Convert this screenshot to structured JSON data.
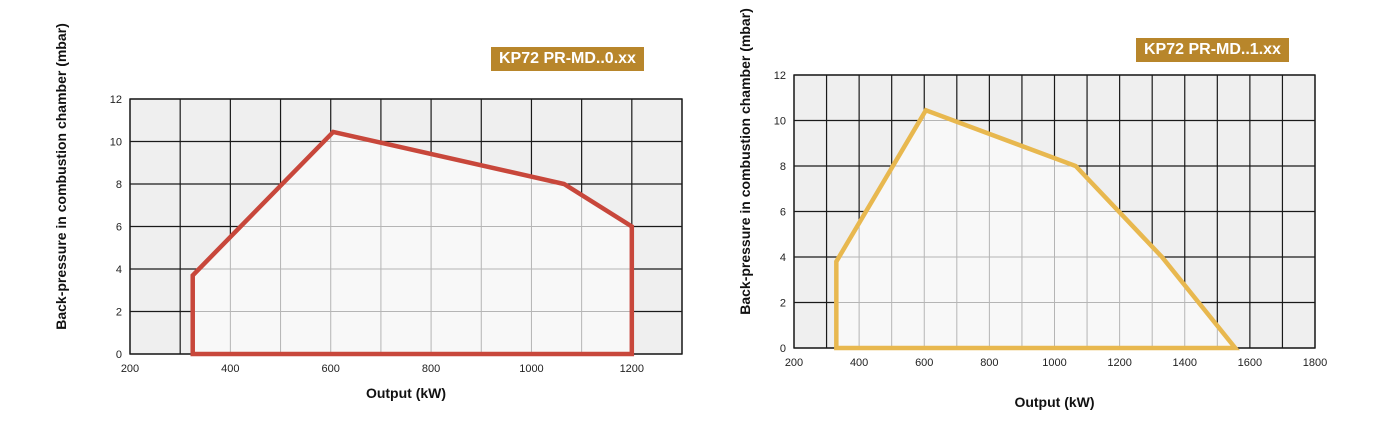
{
  "chart_data": [
    {
      "type": "area",
      "title": "KP72 PR-MD..0.xx",
      "xlabel": "Output (kW)",
      "ylabel": "Back-pressure in combustion chamber (mbar)",
      "xlim": [
        200,
        1300
      ],
      "ylim": [
        0,
        12
      ],
      "xticks": [
        200,
        400,
        600,
        800,
        1000,
        1200
      ],
      "yticks": [
        0,
        2,
        4,
        6,
        8,
        10,
        12
      ],
      "grid": true,
      "series": [
        {
          "x": [
            325,
            325,
            605,
            1065,
            1200,
            1200
          ],
          "y": [
            0,
            3.7,
            10.45,
            8.0,
            6.0,
            0
          ],
          "color": "#c8473b"
        }
      ],
      "badge_color": "#b8862b"
    },
    {
      "type": "area",
      "title": "KP72 PR-MD..1.xx",
      "xlabel": "Output (kW)",
      "ylabel": "Back-pressure in combustion chamber (mbar)",
      "xlim": [
        200,
        1800
      ],
      "ylim": [
        0,
        12
      ],
      "xticks": [
        200,
        400,
        600,
        800,
        1000,
        1200,
        1400,
        1600,
        1800
      ],
      "yticks": [
        0,
        2,
        4,
        6,
        8,
        10,
        12
      ],
      "grid": true,
      "series": [
        {
          "x": [
            330,
            330,
            605,
            1065,
            1330,
            1555
          ],
          "y": [
            0,
            3.8,
            10.45,
            8.0,
            4.0,
            0
          ],
          "color": "#e8b84f"
        }
      ],
      "badge_color": "#b8862b"
    }
  ]
}
